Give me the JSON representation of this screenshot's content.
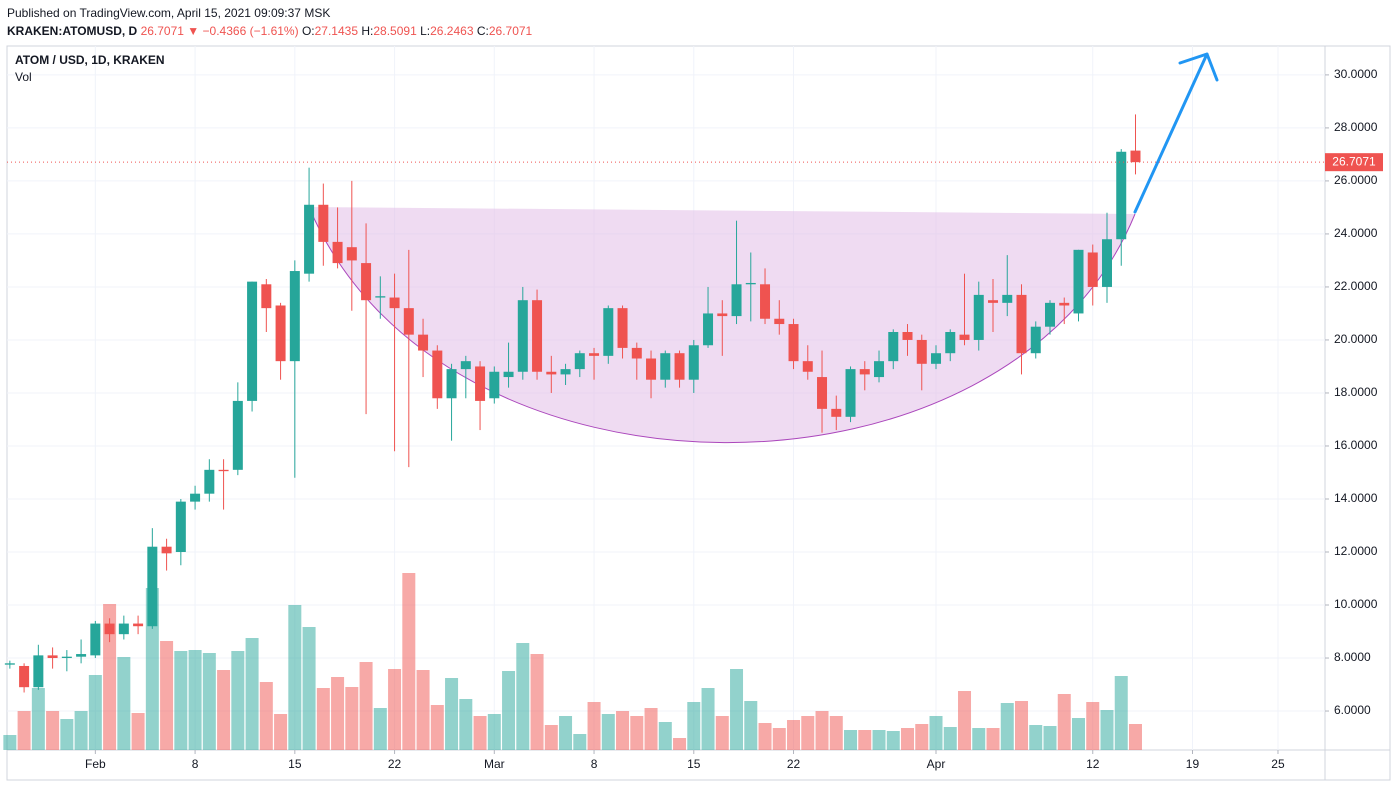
{
  "header": {
    "published": "Published on TradingView.com, April 15, 2021 09:09:37 MSK",
    "symbol": "KRAKEN:ATOMUSD, D",
    "last": "26.7071",
    "direction": "▼",
    "change": "−0.4366 (−1.61%)",
    "ohlc": [
      {
        "label": "O:",
        "value": "27.1435"
      },
      {
        "label": "H:",
        "value": "28.5091"
      },
      {
        "label": "L:",
        "value": "26.2463"
      },
      {
        "label": "C:",
        "value": "26.7071"
      }
    ]
  },
  "chart_data": {
    "type": "candlestick",
    "legend_title": "ATOM / USD, 1D, KRAKEN",
    "volume_label": "Vol",
    "x": [
      26,
      27,
      28,
      29,
      30,
      31,
      32,
      33,
      34,
      35,
      36,
      37,
      38,
      39,
      40,
      41,
      42,
      43,
      44,
      45,
      46,
      47,
      48,
      49,
      50,
      51,
      52,
      53,
      54,
      55,
      56,
      57,
      58,
      59,
      60,
      61,
      62,
      63,
      64,
      65,
      66,
      67,
      68,
      69,
      70,
      71,
      72,
      73,
      74,
      75,
      76,
      77,
      78,
      79,
      80,
      81,
      82,
      83,
      84,
      85,
      86,
      87,
      88,
      89,
      90,
      91,
      92,
      93,
      94,
      95,
      96,
      97,
      98,
      99,
      100,
      101,
      102,
      103,
      104,
      105
    ],
    "open": [
      7.75,
      7.7,
      6.9,
      8.1,
      8.0,
      8.05,
      8.1,
      9.3,
      8.9,
      9.3,
      9.2,
      12.2,
      12.0,
      13.9,
      14.2,
      15.1,
      15.1,
      17.7,
      22.1,
      21.3,
      19.2,
      22.5,
      25.1,
      23.7,
      23.5,
      22.9,
      21.6,
      21.6,
      21.2,
      20.2,
      19.6,
      17.8,
      18.9,
      19.0,
      17.8,
      18.6,
      18.8,
      21.5,
      18.8,
      18.7,
      18.9,
      19.5,
      19.4,
      21.2,
      19.7,
      19.3,
      18.5,
      19.5,
      18.5,
      19.8,
      21.0,
      20.9,
      22.1,
      22.1,
      20.8,
      20.6,
      19.2,
      18.6,
      17.4,
      17.1,
      18.9,
      18.6,
      19.2,
      20.3,
      20.0,
      19.1,
      19.5,
      20.2,
      20.0,
      21.5,
      21.4,
      21.7,
      19.5,
      20.5,
      21.4,
      21.0,
      23.3,
      22.0,
      23.8,
      27.1435
    ],
    "high": [
      7.9,
      7.8,
      8.5,
      8.4,
      8.3,
      8.7,
      9.4,
      9.5,
      9.6,
      9.6,
      12.9,
      12.5,
      14.0,
      14.5,
      15.5,
      15.5,
      18.4,
      22.2,
      22.3,
      21.4,
      23.0,
      26.5,
      25.9,
      25.0,
      26.0,
      24.4,
      22.4,
      22.5,
      23.4,
      20.8,
      19.8,
      19.1,
      19.4,
      19.2,
      19.0,
      19.9,
      22.0,
      21.9,
      19.4,
      19.1,
      19.6,
      19.7,
      21.3,
      21.3,
      19.9,
      19.6,
      19.6,
      19.6,
      20.0,
      22.0,
      21.5,
      24.5,
      23.3,
      22.7,
      21.5,
      20.8,
      19.8,
      19.6,
      17.9,
      19.0,
      19.2,
      19.6,
      20.4,
      20.6,
      20.2,
      19.8,
      20.4,
      22.5,
      22.2,
      22.3,
      23.2,
      22.1,
      20.7,
      21.5,
      21.6,
      23.4,
      23.6,
      24.8,
      27.2,
      28.5091
    ],
    "low": [
      7.6,
      6.7,
      6.8,
      7.6,
      7.5,
      7.8,
      8.0,
      8.6,
      8.7,
      8.9,
      9.1,
      11.3,
      11.5,
      13.6,
      13.9,
      13.6,
      14.9,
      17.3,
      20.3,
      18.5,
      14.8,
      22.2,
      22.8,
      22.7,
      21.1,
      17.2,
      20.8,
      15.8,
      15.2,
      18.6,
      17.4,
      16.2,
      17.8,
      16.6,
      17.6,
      18.2,
      18.5,
      18.5,
      18.0,
      18.3,
      18.6,
      18.5,
      19.1,
      19.3,
      18.5,
      17.8,
      18.2,
      18.2,
      18.0,
      19.7,
      19.4,
      20.6,
      20.7,
      20.6,
      20.2,
      18.9,
      18.5,
      16.5,
      16.6,
      16.9,
      18.1,
      18.4,
      18.9,
      19.4,
      18.1,
      18.9,
      19.2,
      19.8,
      19.6,
      20.3,
      20.9,
      18.7,
      19.3,
      20.2,
      20.6,
      20.7,
      21.3,
      21.4,
      22.8,
      26.2463
    ],
    "close": [
      7.8,
      6.9,
      8.1,
      8.0,
      8.05,
      8.15,
      9.3,
      8.9,
      9.3,
      9.2,
      12.2,
      11.95,
      13.9,
      14.2,
      15.1,
      15.05,
      17.7,
      22.2,
      21.2,
      19.2,
      22.6,
      25.1,
      23.7,
      22.9,
      23.0,
      21.5,
      21.65,
      21.2,
      20.2,
      19.6,
      17.8,
      18.9,
      19.2,
      17.7,
      18.8,
      18.8,
      21.5,
      18.8,
      18.7,
      18.9,
      19.5,
      19.4,
      21.2,
      19.7,
      19.3,
      18.5,
      19.5,
      18.5,
      19.8,
      21.0,
      20.9,
      22.1,
      22.15,
      20.8,
      20.6,
      19.2,
      18.8,
      17.4,
      17.1,
      18.9,
      18.7,
      19.2,
      20.3,
      20.0,
      19.1,
      19.5,
      20.3,
      20.0,
      21.7,
      21.4,
      21.7,
      19.5,
      20.5,
      21.4,
      21.3,
      23.4,
      22.0,
      23.8,
      27.1,
      26.7071
    ],
    "volume": [
      15,
      39,
      62,
      39,
      31,
      39,
      75,
      146,
      93,
      37,
      162,
      109,
      99,
      100,
      97,
      80,
      99,
      112,
      68,
      36,
      145,
      123,
      62,
      73,
      63,
      88,
      42,
      81,
      177,
      80,
      45,
      72,
      51,
      34,
      36,
      79,
      107,
      96,
      25,
      34,
      16,
      48,
      36,
      39,
      34,
      42,
      28,
      12,
      48,
      62,
      34,
      81,
      49,
      27,
      22,
      30,
      34,
      39,
      34,
      20,
      20,
      20,
      19,
      22,
      26,
      34,
      23,
      59,
      22,
      22,
      47,
      49,
      25,
      24,
      56,
      32,
      48,
      40,
      74,
      26
    ],
    "xlim": [
      25.8,
      118.3
    ],
    "xticks": [
      {
        "value": 32,
        "label": "Feb"
      },
      {
        "value": 39,
        "label": "8"
      },
      {
        "value": 46,
        "label": "15"
      },
      {
        "value": 53,
        "label": "22"
      },
      {
        "value": 60,
        "label": "Mar"
      },
      {
        "value": 67,
        "label": "8"
      },
      {
        "value": 74,
        "label": "15"
      },
      {
        "value": 81,
        "label": "22"
      },
      {
        "value": 91,
        "label": "Apr"
      },
      {
        "value": 102,
        "label": "12"
      },
      {
        "value": 109,
        "label": "19"
      },
      {
        "value": 115,
        "label": "25"
      }
    ],
    "ylim": [
      4.53,
      31.09
    ],
    "yticks": [
      {
        "value": 6,
        "label": "6.0000"
      },
      {
        "value": 8,
        "label": "8.0000"
      },
      {
        "value": 10,
        "label": "10.0000"
      },
      {
        "value": 12,
        "label": "12.0000"
      },
      {
        "value": 14,
        "label": "14.0000"
      },
      {
        "value": 16,
        "label": "16.0000"
      },
      {
        "value": 18,
        "label": "18.0000"
      },
      {
        "value": 20,
        "label": "20.0000"
      },
      {
        "value": 22,
        "label": "22.0000"
      },
      {
        "value": 24,
        "label": "24.0000"
      },
      {
        "value": 26,
        "label": "26.0000"
      },
      {
        "value": 28,
        "label": "28.0000"
      },
      {
        "value": 30,
        "label": "30.0000"
      }
    ],
    "volume_lim": [
      0,
      704
    ],
    "up_color": "#26a69a",
    "down_color": "#ef5350",
    "grid": true
  }
}
